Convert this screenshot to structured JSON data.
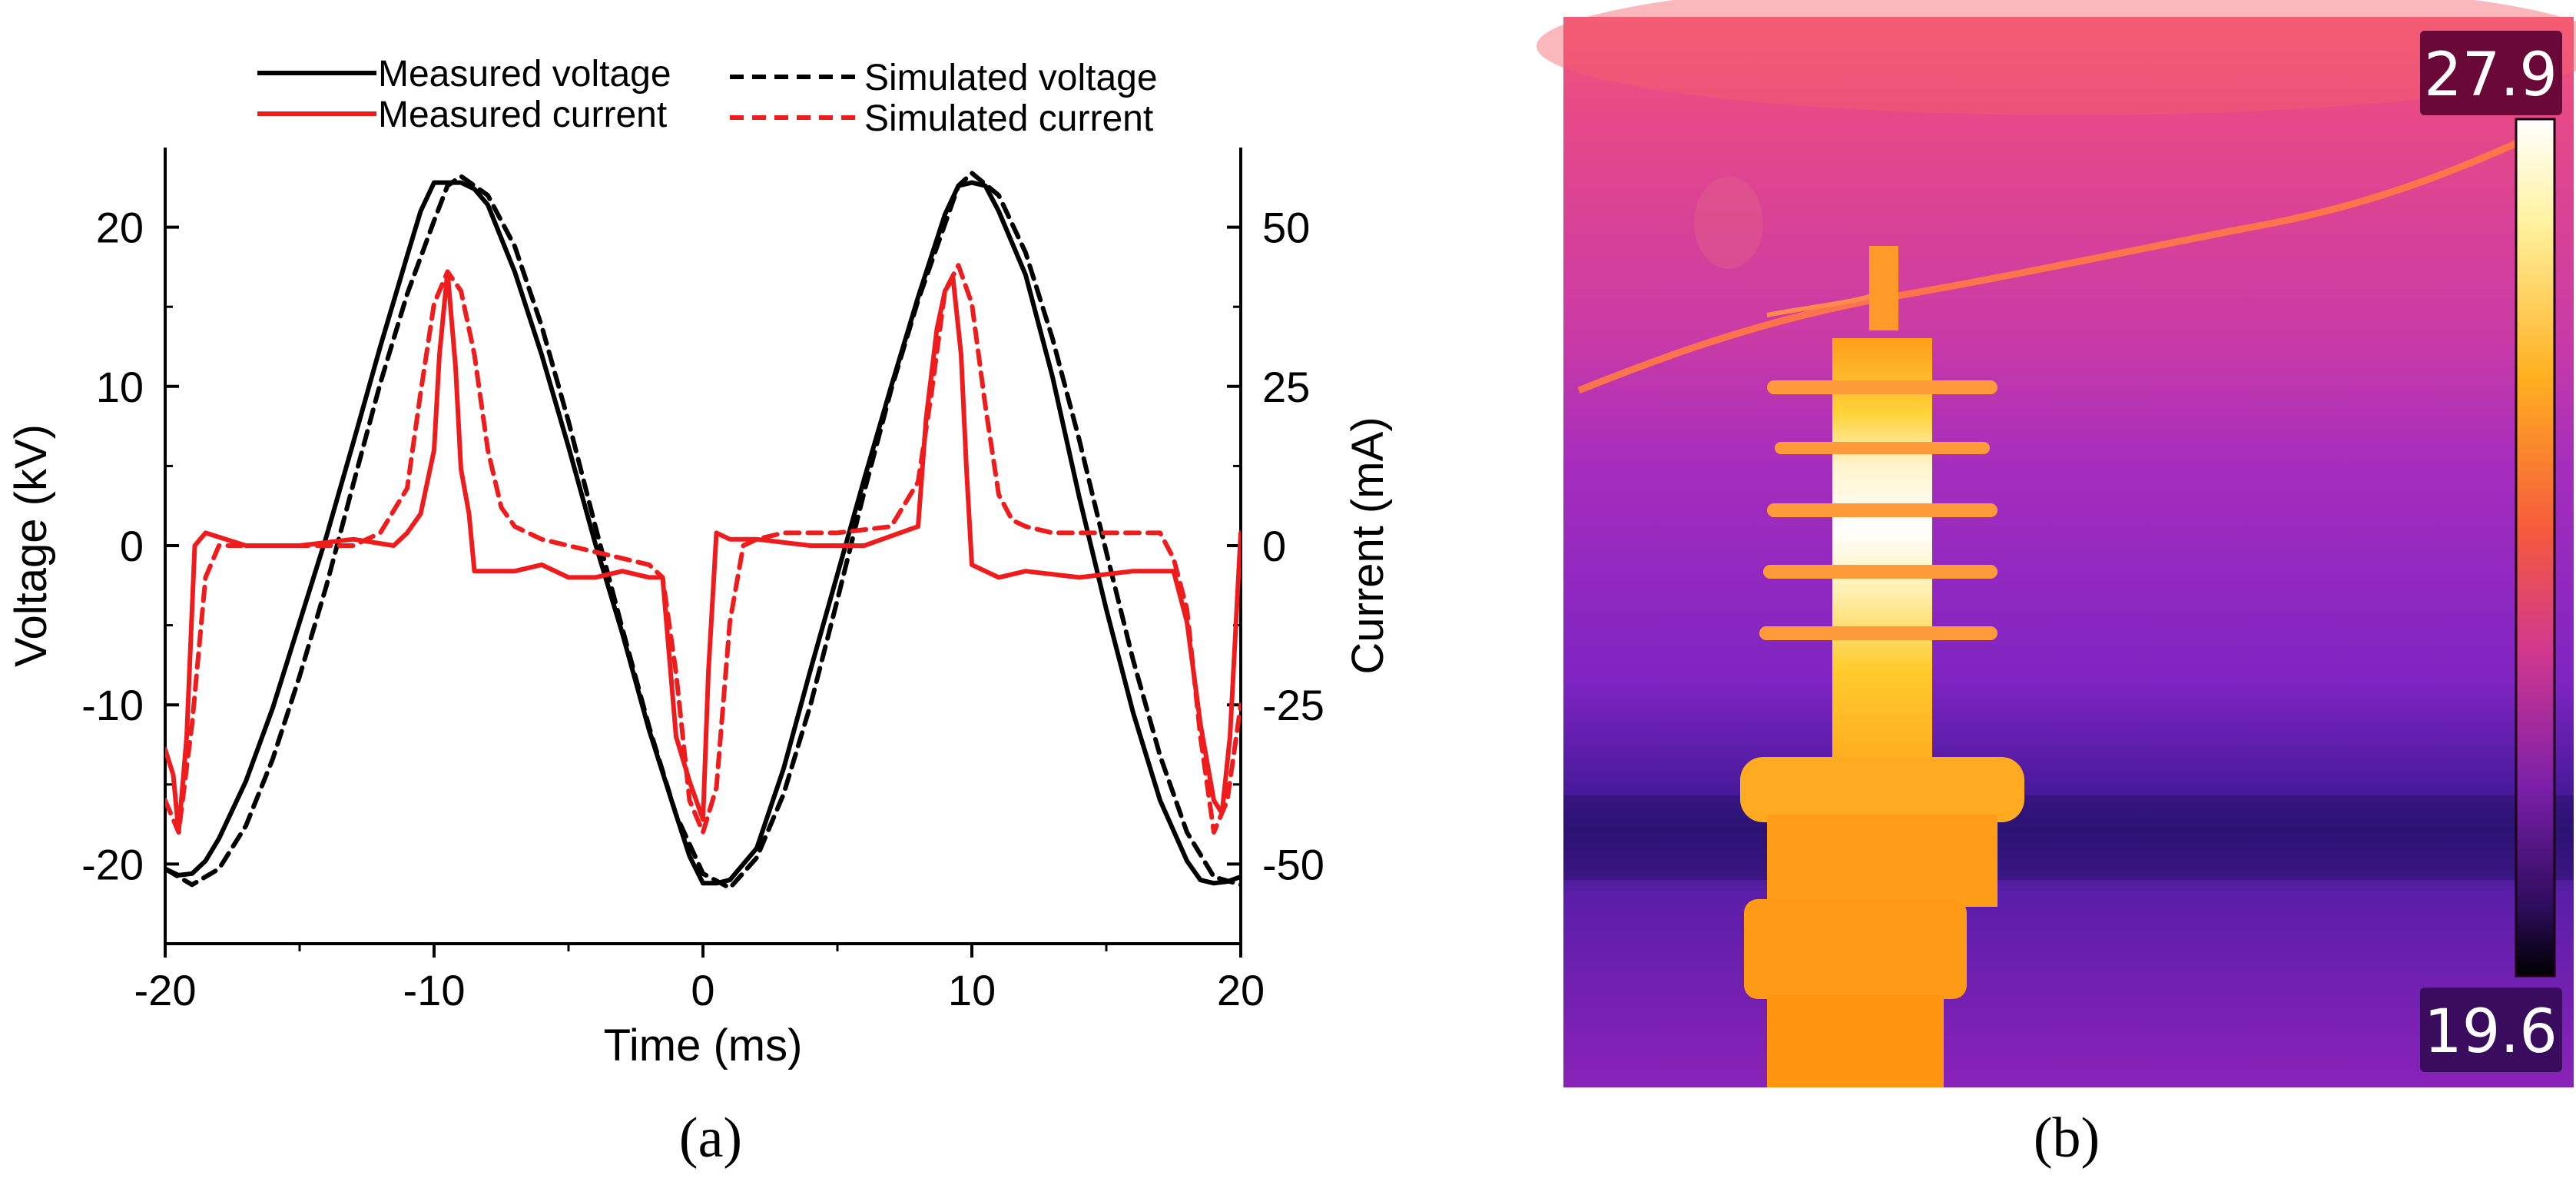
{
  "panel_a": {
    "caption": "(a)",
    "chart_data": {
      "type": "line",
      "title": "",
      "xlabel": "Time (ms)",
      "ylabel": "Voltage (kV)",
      "y2label": "Current (mA)",
      "xlim": [
        -20,
        20
      ],
      "ylim": [
        -25,
        25
      ],
      "y2lim": [
        -62.5,
        62.5
      ],
      "xticks": [
        "-20",
        "-10",
        "0",
        "10",
        "20"
      ],
      "xtick_values": [
        -20,
        -10,
        0,
        10,
        20
      ],
      "yticks": [
        "-20",
        "-10",
        "0",
        "10",
        "20"
      ],
      "ytick_values": [
        -20,
        -10,
        0,
        10,
        20
      ],
      "y2ticks": [
        "-50",
        "-25",
        "0",
        "25",
        "50"
      ],
      "y2tick_values": [
        -50,
        -25,
        0,
        25,
        50
      ],
      "legend": {
        "placement": "top",
        "entries": [
          "Measured voltage",
          "Simulated voltage",
          "Measured current",
          "Simulated current"
        ]
      },
      "series": [
        {
          "name": "Measured voltage",
          "axis": "left",
          "color": "#000000",
          "style": "solid",
          "x": [
            -20,
            -19.5,
            -19,
            -18.5,
            -18,
            -17,
            -16,
            -15,
            -14,
            -13,
            -12,
            -11,
            -10.5,
            -10,
            -9.5,
            -9,
            -8.5,
            -8,
            -7,
            -6,
            -5,
            -4,
            -3,
            -2,
            -1,
            -0.5,
            0,
            0.5,
            1,
            2,
            3,
            4,
            5,
            6,
            7,
            8,
            9,
            9.5,
            10,
            10.5,
            11,
            12,
            13,
            14,
            15,
            16,
            17,
            18,
            18.5,
            19,
            19.5,
            20
          ],
          "y": [
            -20.3,
            -20.7,
            -20.6,
            -19.8,
            -18.4,
            -14.8,
            -10.2,
            -4.8,
            0.6,
            6.5,
            12.5,
            18.2,
            21.0,
            22.8,
            22.8,
            22.8,
            22.4,
            21.4,
            17.2,
            12.0,
            6.2,
            0.1,
            -5.5,
            -11.6,
            -16.9,
            -19.5,
            -21.2,
            -21.2,
            -21.0,
            -19.0,
            -14.0,
            -7.8,
            -1.8,
            4.2,
            10.0,
            15.6,
            20.8,
            22.6,
            22.8,
            22.6,
            21.0,
            17.0,
            10.6,
            3.0,
            -4.0,
            -10.5,
            -16.0,
            -19.8,
            -21.0,
            -21.2,
            -21.1,
            -20.8
          ]
        },
        {
          "name": "Simulated voltage",
          "axis": "left",
          "color": "#000000",
          "style": "dashed",
          "x": [
            -20,
            -19,
            -18,
            -17,
            -16,
            -15,
            -14,
            -13,
            -12,
            -11,
            -10,
            -9.5,
            -9,
            -8,
            -7,
            -6,
            -5,
            -4,
            -3,
            -2,
            -1,
            0,
            1,
            2,
            3,
            4,
            5,
            6,
            7,
            8,
            9,
            9.5,
            10,
            11,
            12,
            13,
            14,
            15,
            16,
            17,
            18,
            19,
            20
          ],
          "y": [
            -20.3,
            -21.3,
            -20.3,
            -17.6,
            -13.4,
            -8.2,
            -2.5,
            3.9,
            10.2,
            15.8,
            20.4,
            22.6,
            23.2,
            22.0,
            18.8,
            13.8,
            7.8,
            1.2,
            -5.2,
            -11.4,
            -16.9,
            -20.6,
            -21.5,
            -19.6,
            -15.6,
            -10.0,
            -3.4,
            3.4,
            9.8,
            15.4,
            20.2,
            22.6,
            23.4,
            22.0,
            18.4,
            13.0,
            6.6,
            -0.4,
            -7.2,
            -13.2,
            -18.0,
            -20.8,
            -21.3
          ]
        },
        {
          "name": "Measured current",
          "axis": "right",
          "color": "#ee1c1c",
          "style": "solid",
          "x": [
            -20,
            -19.7,
            -19.5,
            -19.2,
            -18.9,
            -18.5,
            -17,
            -15,
            -13,
            -11.5,
            -11,
            -10.5,
            -10,
            -9.8,
            -9.5,
            -9.2,
            -9,
            -8.7,
            -8.5,
            -8,
            -7,
            -6,
            -5,
            -4,
            -3,
            -2,
            -1.5,
            -1,
            -0.5,
            0,
            0.2,
            0.5,
            1,
            2,
            4,
            6,
            8,
            8.3,
            8.7,
            9,
            9.3,
            9.6,
            9.8,
            10,
            10.5,
            11,
            12,
            14,
            16,
            17.5,
            18,
            18.5,
            19,
            19.3,
            19.6,
            20
          ],
          "y": [
            -32,
            -36,
            -45,
            -30,
            0,
            2,
            0,
            0,
            1,
            0,
            2,
            5,
            15,
            30,
            43,
            28,
            12,
            5,
            -4,
            -4,
            -4,
            -3,
            -5,
            -5,
            -4,
            -5,
            -5,
            -30,
            -37,
            -43,
            -20,
            2,
            1,
            1,
            0,
            0,
            3,
            20,
            34,
            40,
            42,
            30,
            12,
            -3,
            -4,
            -5,
            -4,
            -5,
            -4,
            -4,
            -12,
            -28,
            -40,
            -42,
            -30,
            2
          ]
        },
        {
          "name": "Simulated current",
          "axis": "right",
          "color": "#ee1c1c",
          "style": "dashed",
          "x": [
            -20,
            -19.5,
            -19,
            -18.5,
            -18,
            -17,
            -15,
            -13,
            -12,
            -11,
            -10.5,
            -10,
            -9.5,
            -9,
            -8.5,
            -8,
            -7.5,
            -7,
            -6,
            -5,
            -4,
            -3,
            -2,
            -1.5,
            -1,
            -0.5,
            0,
            0.5,
            1,
            1.5,
            2,
            3,
            5,
            7,
            8,
            8.5,
            9,
            9.5,
            10,
            10.5,
            11,
            11.5,
            12,
            13,
            15,
            17,
            17.5,
            18,
            18.5,
            19,
            19.5,
            20
          ],
          "y": [
            -40,
            -45,
            -28,
            -5,
            0,
            0,
            0,
            0,
            2,
            9,
            24,
            38,
            43,
            40,
            30,
            15,
            6,
            3,
            1,
            0,
            -1,
            -2,
            -3,
            -5,
            -20,
            -40,
            -45,
            -38,
            -12,
            0,
            1,
            2,
            2,
            3,
            10,
            24,
            40,
            44,
            38,
            22,
            8,
            4,
            3,
            2,
            2,
            2,
            -2,
            -10,
            -30,
            -45,
            -40,
            -25
          ]
        }
      ]
    }
  },
  "panel_b": {
    "caption": "(b)",
    "colorbar": {
      "max_label": "27.9",
      "min_label": "19.6"
    },
    "colors": {
      "sky_top": "#f04a7e",
      "sky_mid": "#c838a8",
      "band_dark": "#3c1a8e",
      "ground": "#8a20b6",
      "insulator_hot": "#ffffff",
      "insulator_warm": "#ffc21a",
      "insulator_base": "#ff9a10",
      "wire": "#ff7a3c",
      "label_box": "#6a0838"
    }
  }
}
